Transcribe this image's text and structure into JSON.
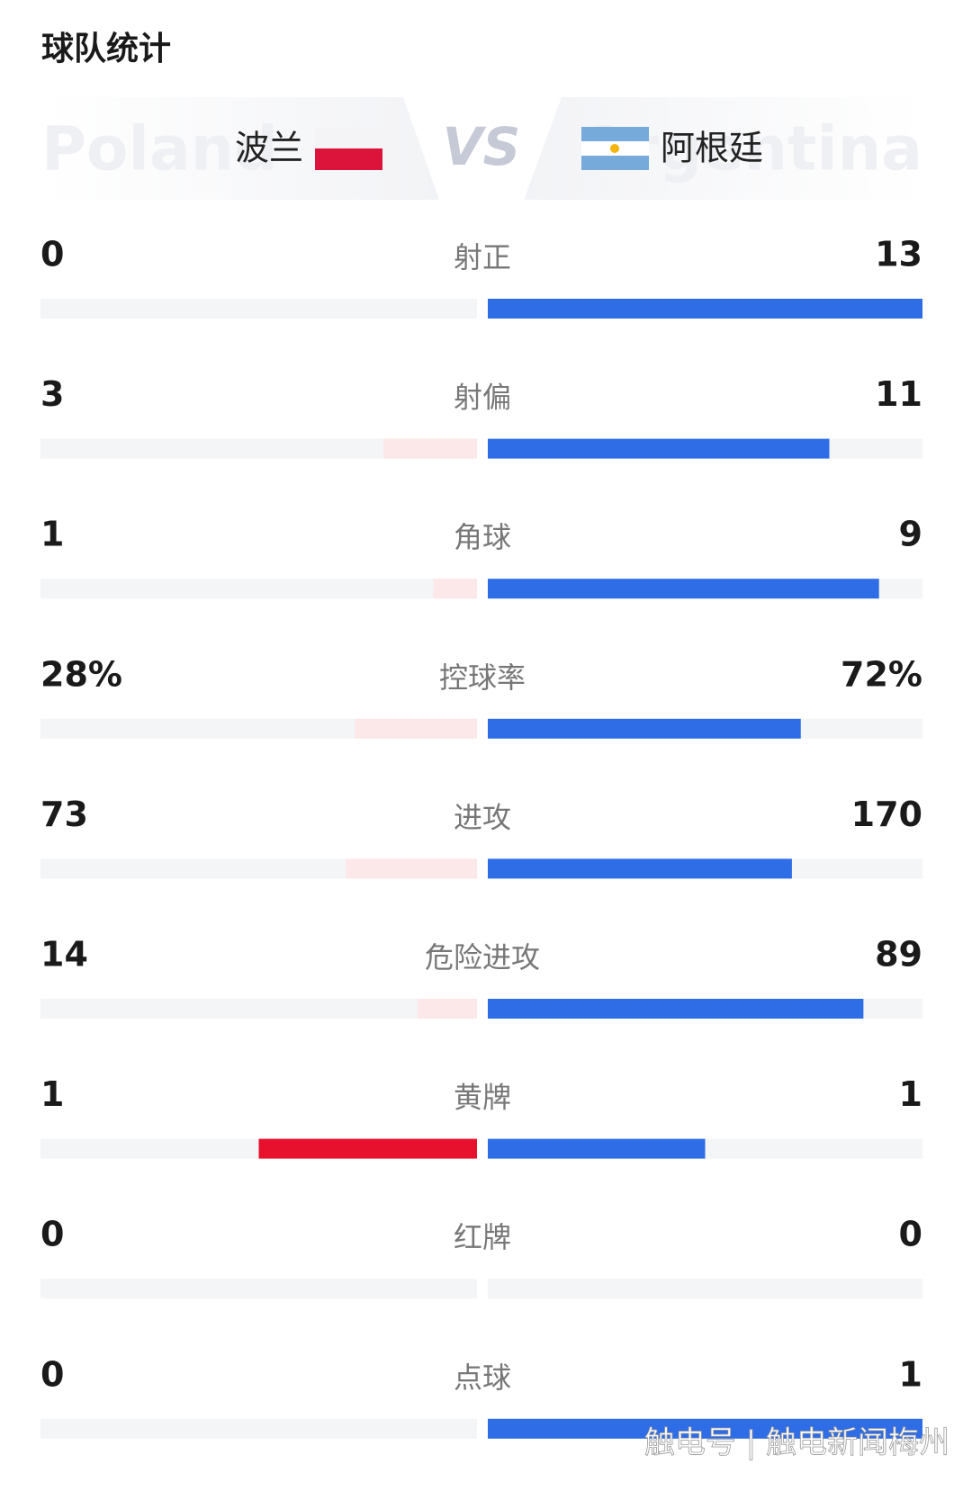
{
  "header": {
    "title": "球队统计",
    "home_watermark": "Poland",
    "away_watermark": "Argentina",
    "home_name": "波兰",
    "vs": "VS",
    "away_name": "阿根廷"
  },
  "stats": [
    {
      "label": "射正",
      "home": 0,
      "away": 13
    },
    {
      "label": "射偏",
      "home": 3,
      "away": 11
    },
    {
      "label": "角球",
      "home": 1,
      "away": 9
    },
    {
      "label": "控球率",
      "home": 28,
      "away": 72,
      "home_label": "28%",
      "away_label": "72%"
    },
    {
      "label": "进攻",
      "home": 73,
      "away": 170
    },
    {
      "label": "危险进攻",
      "home": 14,
      "away": 89
    },
    {
      "label": "黄牌",
      "home": 1,
      "away": 1
    },
    {
      "label": "红牌",
      "home": 0,
      "away": 0
    },
    {
      "label": "点球",
      "home": 0,
      "away": 1
    }
  ],
  "footer": {
    "watermark": "触电号 | 触电新闻梅州"
  }
}
